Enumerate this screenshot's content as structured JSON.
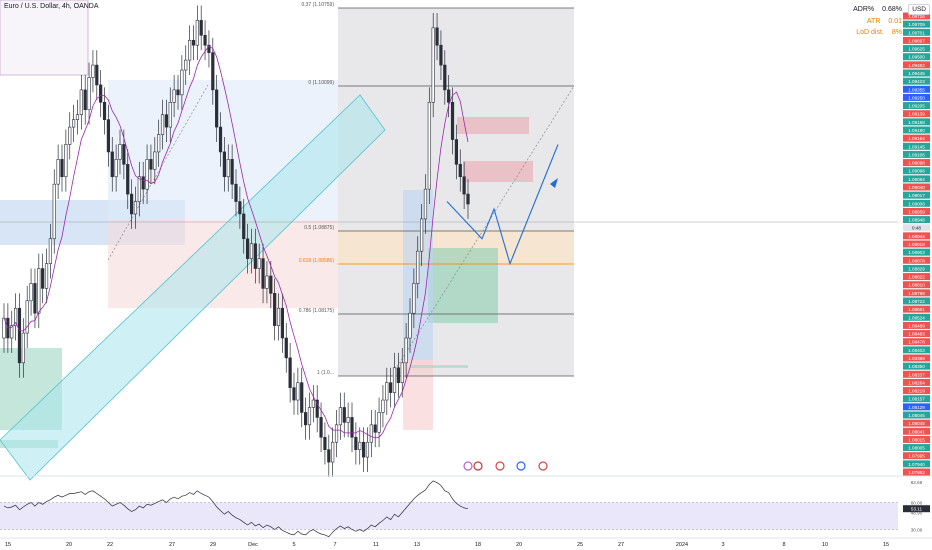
{
  "header": {
    "symbol_title": "Euro / U.S. Dollar, 4h, OANDA"
  },
  "currency_button": "USD",
  "stats": [
    {
      "label": "ADR%",
      "value": "0.68%",
      "color": "#131722"
    },
    {
      "label": "ATR",
      "value": "0.01",
      "color": "#f57c00"
    },
    {
      "label": "LoD dist.",
      "value": "8%",
      "color": "#f57c00"
    }
  ],
  "fib_labels": [
    "0.37 (1.10759)",
    "0 (1.10099)",
    "0.5 (1.08875)",
    "0.618 (1.08586)",
    "0.786 (1.08175)",
    "1 (1.0..."
  ],
  "price_axis": [
    "1.09726",
    "1.09709",
    "1.09701",
    "1.09697",
    "1.09625",
    "1.09500",
    "1.09462",
    "1.09445",
    "1.09423",
    "1.09355",
    "1.09250",
    "1.09205",
    "1.09139",
    "1.09188",
    "1.09180",
    "1.09164",
    "1.09145",
    "1.09106",
    "1.09098",
    "1.09098",
    "1.09084",
    "1.09040",
    "1.09017",
    "1.09008",
    "1.08959",
    "1.08948",
    "0:48",
    "1.08944",
    "1.08918",
    "1.08903",
    "1.08878",
    "1.08829",
    "1.08822",
    "1.08810",
    "1.08798",
    "1.08722",
    "1.08661",
    "1.08524",
    "1.08489",
    "1.08483",
    "1.08478",
    "1.08403",
    "1.08388",
    "1.08350",
    "1.08337",
    "1.08264",
    "1.08219",
    "1.08157",
    "1.08129",
    "1.08045",
    "1.08045",
    "1.08041",
    "1.08015",
    "1.08005",
    "1.07995",
    "1.07940",
    "1.07862"
  ],
  "rsi_axis": [
    "82.69",
    "60.00",
    "53.11",
    "48.90",
    "30.00"
  ],
  "time_axis": [
    "15",
    "20",
    "22",
    "27",
    "29",
    "Dec",
    "5",
    "7",
    "11",
    "13",
    "18",
    "20",
    "25",
    "27",
    "2024",
    "3",
    "8",
    "10",
    "15"
  ],
  "chart_data": {
    "type": "candlestick",
    "title": "Euro / U.S. Dollar, 4h, OANDA",
    "ylim": [
      1.0786,
      1.0973
    ],
    "current_price": 1.08948,
    "fib_levels": [
      {
        "ratio": 0.37,
        "price": 1.10759
      },
      {
        "ratio": 0,
        "price": 1.10099
      },
      {
        "ratio": 0.5,
        "price": 1.08875
      },
      {
        "ratio": 0.618,
        "price": 1.08586
      },
      {
        "ratio": 0.786,
        "price": 1.08175
      },
      {
        "ratio": 1,
        "price": 1.0766
      }
    ],
    "close": [
      1.0848,
      1.084,
      1.0845,
      1.0852,
      1.083,
      1.0842,
      1.0855,
      1.0862,
      1.085,
      1.0868,
      1.086,
      1.087,
      1.088,
      1.0902,
      1.0912,
      1.0905,
      1.0918,
      1.0925,
      1.0928,
      1.093,
      1.094,
      1.0932,
      1.0945,
      1.095,
      1.0942,
      1.0935,
      1.0928,
      1.0915,
      1.0905,
      1.0912,
      1.0918,
      1.091,
      1.0898,
      1.089,
      1.0895,
      1.0905,
      1.09,
      1.0912,
      1.0908,
      1.0915,
      1.0922,
      1.093,
      1.0925,
      1.0935,
      1.094,
      1.0938,
      1.0948,
      1.0952,
      1.096,
      1.0958,
      1.0968,
      1.0962,
      1.0958,
      1.0955,
      1.094,
      1.0925,
      1.0915,
      1.0905,
      1.0912,
      1.0902,
      1.0895,
      1.089,
      1.088,
      1.0872,
      1.0878,
      1.0868,
      1.0872,
      1.086,
      1.0865,
      1.0858,
      1.0845,
      1.0852,
      1.084,
      1.0832,
      1.082,
      1.0815,
      1.0822,
      1.081,
      1.0805,
      1.0812,
      1.0815,
      1.0808,
      1.08,
      1.0795,
      1.079,
      1.0798,
      1.0805,
      1.0812,
      1.0806,
      1.0808,
      1.08,
      1.0795,
      1.0798,
      1.0792,
      1.0798,
      1.0805,
      1.0802,
      1.081,
      1.0815,
      1.0822,
      1.0818,
      1.0828,
      1.0822,
      1.083,
      1.084,
      1.085,
      1.0862,
      1.0875,
      1.0888,
      1.09,
      1.0935,
      1.0965,
      1.0958,
      1.095,
      1.094,
      1.0935,
      1.092,
      1.091,
      1.0905,
      1.0898,
      1.0894
    ],
    "rsi": [
      56,
      54,
      55,
      57,
      52,
      55,
      58,
      60,
      56,
      60,
      58,
      61,
      63,
      66,
      68,
      66,
      68,
      70,
      70,
      71,
      72,
      69,
      72,
      73,
      70,
      67,
      64,
      60,
      56,
      58,
      60,
      57,
      53,
      50,
      52,
      56,
      54,
      58,
      57,
      59,
      61,
      63,
      60,
      64,
      66,
      64,
      67,
      68,
      71,
      69,
      73,
      70,
      68,
      66,
      61,
      55,
      51,
      47,
      50,
      46,
      43,
      41,
      38,
      35,
      38,
      34,
      36,
      32,
      35,
      33,
      30,
      33,
      29,
      27,
      25,
      24,
      28,
      25,
      24,
      28,
      30,
      27,
      25,
      24,
      22,
      27,
      31,
      34,
      31,
      33,
      30,
      28,
      30,
      28,
      31,
      35,
      33,
      37,
      40,
      44,
      41,
      47,
      44,
      49,
      54,
      59,
      64,
      68,
      71,
      74,
      80,
      84,
      82,
      79,
      73,
      71,
      64,
      59,
      56,
      54,
      53.11
    ],
    "rsi_levels": [
      30,
      60
    ],
    "projection_path": [
      1.0895,
      1.088,
      1.0892,
      1.087,
      1.0918
    ]
  }
}
